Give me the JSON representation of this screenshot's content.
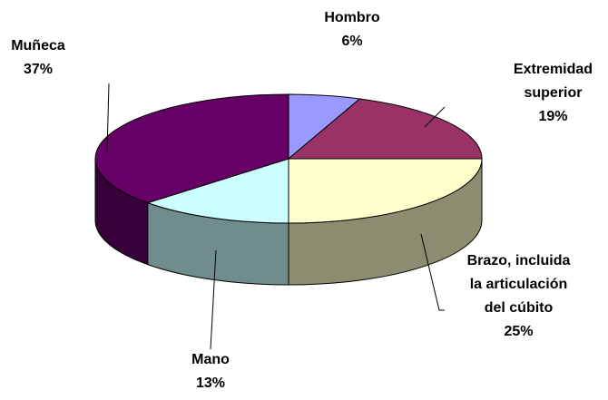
{
  "chart_data": {
    "type": "pie",
    "categories": [
      "Hombro",
      "Extremidad superior",
      "Brazo, incluida la articulación del cúbito",
      "Mano",
      "Muñeca"
    ],
    "values": [
      6,
      19,
      25,
      13,
      37
    ],
    "value_labels": [
      "6%",
      "19%",
      "25%",
      "13%",
      "37%"
    ],
    "colors": [
      "#9999ff",
      "#993366",
      "#ffffcc",
      "#ccffff",
      "#660066"
    ]
  }
}
